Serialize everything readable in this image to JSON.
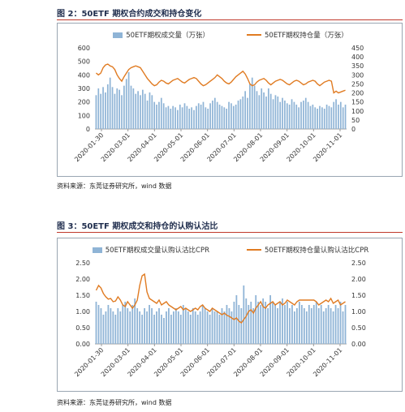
{
  "figure1": {
    "caption": "图 2：50ETF 期权合约成交和持仓变化",
    "source": "资料来源：东莞证券研究所，wind 数据"
  },
  "figure2": {
    "caption": "图 3：50ETF 期权成交和持仓的认购认沽比",
    "source": "资料来源：东莞证券研究所，wind 数据"
  },
  "colors": {
    "bar": "#8fb4d6",
    "line": "#e07b22",
    "rule": "#c0392b",
    "frame": "#9aa6b2"
  },
  "chart_data": [
    {
      "type": "bar",
      "legend": [
        "50ETF期权成交量（万张）",
        "50ETF期权持仓量（万张）"
      ],
      "legend_position": "top",
      "grid": false,
      "x_tick_labels": [
        "2020-01-30",
        "2020-03-01",
        "2020-04-01",
        "2020-05-01",
        "2020-06-01",
        "2020-07-01",
        "2020-08-01",
        "2020-09-01",
        "2020-10-01",
        "2020-11-01"
      ],
      "y_left_ticks": [
        0,
        100,
        200,
        300,
        400,
        500,
        600
      ],
      "y_right_ticks": [
        0,
        50,
        100,
        150,
        200,
        250,
        300,
        350,
        400,
        450
      ],
      "ylim_left": [
        0,
        600
      ],
      "ylim_right": [
        0,
        450
      ],
      "series": [
        {
          "name": "50ETF期权成交量（万张）",
          "type": "bar",
          "axis": "left",
          "values": [
            250,
            300,
            260,
            310,
            270,
            330,
            380,
            310,
            260,
            300,
            290,
            250,
            320,
            370,
            420,
            320,
            300,
            260,
            280,
            250,
            290,
            260,
            210,
            270,
            250,
            200,
            180,
            200,
            230,
            190,
            160,
            170,
            150,
            170,
            160,
            140,
            180,
            160,
            190,
            170,
            150,
            160,
            140,
            170,
            190,
            180,
            200,
            160,
            150,
            190,
            210,
            230,
            200,
            180,
            170,
            160,
            150,
            200,
            190,
            170,
            180,
            210,
            220,
            240,
            280,
            230,
            330,
            380,
            320,
            280,
            250,
            300,
            270,
            240,
            300,
            260,
            220,
            250,
            240,
            200,
            230,
            210,
            190,
            180,
            220,
            200,
            180,
            160,
            200,
            210,
            230,
            200,
            170,
            180,
            160,
            150,
            170,
            160,
            150,
            180,
            170,
            160,
            200,
            220,
            180,
            200,
            160,
            180
          ]
        },
        {
          "name": "50ETF期权持仓量（万张）",
          "type": "line",
          "axis": "right",
          "values": [
            310,
            300,
            310,
            340,
            355,
            360,
            350,
            345,
            330,
            300,
            280,
            265,
            290,
            310,
            330,
            340,
            345,
            350,
            345,
            340,
            320,
            300,
            280,
            265,
            250,
            240,
            245,
            260,
            270,
            265,
            255,
            250,
            260,
            270,
            275,
            280,
            270,
            260,
            255,
            265,
            275,
            280,
            285,
            280,
            265,
            250,
            240,
            245,
            255,
            265,
            275,
            285,
            300,
            290,
            280,
            265,
            255,
            250,
            260,
            275,
            290,
            300,
            310,
            320,
            305,
            280,
            250,
            240,
            245,
            260,
            270,
            275,
            280,
            270,
            255,
            245,
            255,
            265,
            270,
            275,
            270,
            260,
            250,
            245,
            255,
            265,
            270,
            265,
            255,
            245,
            250,
            260,
            265,
            270,
            265,
            250,
            240,
            250,
            260,
            265,
            270,
            265,
            200,
            210,
            200,
            205,
            210,
            215
          ]
        }
      ]
    },
    {
      "type": "bar",
      "legend": [
        "50ETF期权成交量认购认沽比CPR",
        "50ETF期权持仓量认购认沽比CPR"
      ],
      "legend_position": "top",
      "grid": false,
      "x_tick_labels": [
        "2020-01-30",
        "2020-03-01",
        "2020-04-01",
        "2020-05-01",
        "2020-06-01",
        "2020-07-01",
        "2020-08-01",
        "2020-09-01",
        "2020-10-01",
        "2020-11-01"
      ],
      "y_left_ticks": [
        "0.00",
        "0.50",
        "1.00",
        "1.50",
        "2.00",
        "2.50"
      ],
      "y_right_ticks": [
        "0.00",
        "0.50",
        "1.00",
        "1.50",
        "2.00",
        "2.50"
      ],
      "ylim_left": [
        0,
        2.5
      ],
      "ylim_right": [
        0,
        2.5
      ],
      "series": [
        {
          "name": "50ETF期权成交量认购认沽比CPR",
          "type": "bar",
          "axis": "left",
          "values": [
            1.3,
            1.2,
            1.1,
            0.9,
            1.0,
            1.2,
            1.1,
            1.0,
            0.9,
            1.1,
            1.0,
            1.2,
            1.3,
            1.1,
            1.0,
            1.2,
            1.4,
            1.1,
            1.0,
            0.9,
            1.1,
            1.0,
            1.2,
            1.1,
            0.9,
            1.0,
            1.1,
            0.9,
            0.8,
            1.0,
            1.1,
            0.9,
            1.0,
            1.1,
            1.0,
            0.9,
            1.2,
            1.1,
            1.0,
            0.9,
            1.1,
            1.0,
            0.9,
            1.0,
            1.2,
            1.1,
            1.0,
            0.9,
            1.1,
            1.0,
            1.0,
            0.9,
            1.1,
            1.0,
            1.2,
            1.1,
            1.0,
            1.3,
            1.5,
            1.2,
            1.1,
            1.8,
            1.4,
            1.2,
            1.3,
            1.1,
            1.5,
            1.3,
            1.2,
            1.4,
            1.3,
            1.1,
            1.5,
            1.3,
            1.2,
            1.1,
            1.3,
            1.4,
            1.2,
            1.3,
            1.1,
            1.2,
            1.0,
            1.1,
            1.3,
            1.2,
            1.1,
            1.0,
            1.2,
            1.1,
            1.2,
            1.3,
            1.1,
            1.2,
            1.0,
            1.1,
            1.2,
            1.1,
            1.0,
            1.2,
            1.1,
            1.3,
            1.0,
            1.2
          ]
        },
        {
          "name": "50ETF期权持仓量认购认沽比CPR",
          "type": "line",
          "axis": "right",
          "values": [
            1.65,
            1.8,
            1.72,
            1.55,
            1.45,
            1.38,
            1.4,
            1.3,
            1.32,
            1.45,
            1.35,
            1.2,
            1.15,
            1.3,
            1.2,
            1.1,
            1.2,
            1.35,
            1.8,
            2.1,
            2.15,
            1.6,
            1.4,
            1.35,
            1.3,
            1.25,
            1.35,
            1.2,
            1.25,
            1.3,
            1.2,
            1.15,
            1.1,
            1.05,
            1.1,
            1.15,
            1.05,
            1.1,
            1.05,
            1.0,
            1.05,
            1.1,
            1.05,
            1.15,
            1.2,
            1.1,
            1.05,
            1.0,
            1.1,
            1.05,
            1.0,
            0.95,
            0.9,
            0.95,
            0.88,
            0.85,
            0.8,
            0.75,
            0.8,
            0.7,
            0.65,
            0.75,
            0.85,
            1.0,
            1.05,
            0.95,
            1.1,
            1.2,
            1.3,
            1.15,
            1.1,
            1.2,
            1.25,
            1.3,
            1.2,
            1.25,
            1.3,
            1.2,
            1.25,
            1.35,
            1.3,
            1.25,
            1.2,
            1.3,
            1.35,
            1.35,
            1.35,
            1.35,
            1.35,
            1.35,
            1.35,
            1.3,
            1.2,
            1.25,
            1.3,
            1.35,
            1.3,
            1.4,
            1.25,
            1.3,
            1.35,
            1.2,
            1.25,
            1.3
          ]
        }
      ]
    }
  ]
}
